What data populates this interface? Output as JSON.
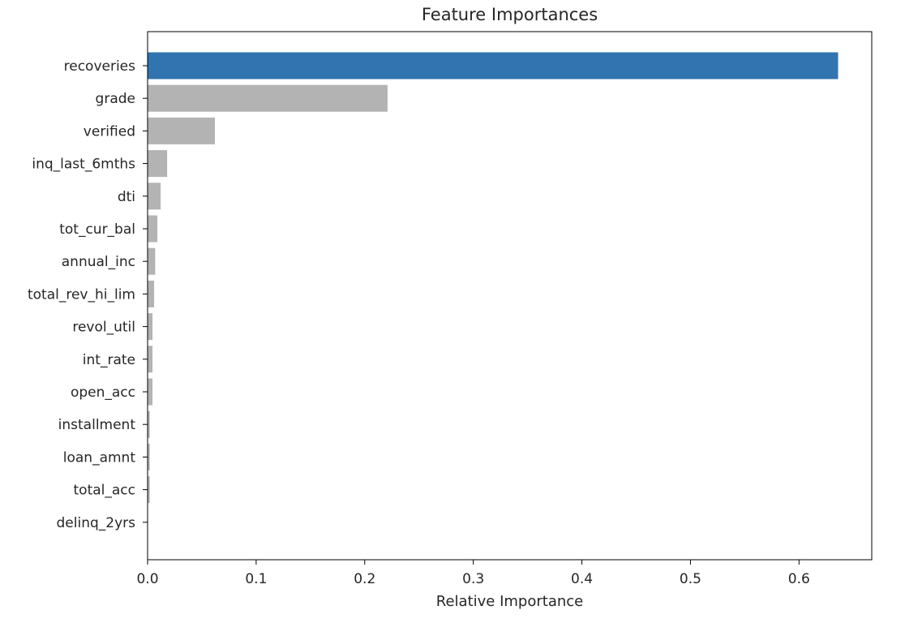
{
  "chart_data": {
    "type": "bar",
    "orientation": "horizontal",
    "title": "Feature Importances",
    "xlabel": "Relative Importance",
    "ylabel": "",
    "xlim": [
      0,
      0.667
    ],
    "xticks": [
      "0.0",
      "0.1",
      "0.2",
      "0.3",
      "0.4",
      "0.5",
      "0.6"
    ],
    "grid": false,
    "highlight_color": "#3274b0",
    "bar_color": "#b3b3b3",
    "categories": [
      "recoveries",
      "grade",
      "verified",
      "inq_last_6mths",
      "dti",
      "tot_cur_bal",
      "annual_inc",
      "total_rev_hi_lim",
      "revol_util",
      "int_rate",
      "open_acc",
      "installment",
      "loan_amnt",
      "total_acc",
      "delinq_2yrs"
    ],
    "values": [
      0.636,
      0.221,
      0.062,
      0.018,
      0.012,
      0.009,
      0.007,
      0.006,
      0.0045,
      0.0045,
      0.0045,
      0.002,
      0.002,
      0.002,
      0.0
    ],
    "highlighted": [
      "recoveries"
    ]
  }
}
